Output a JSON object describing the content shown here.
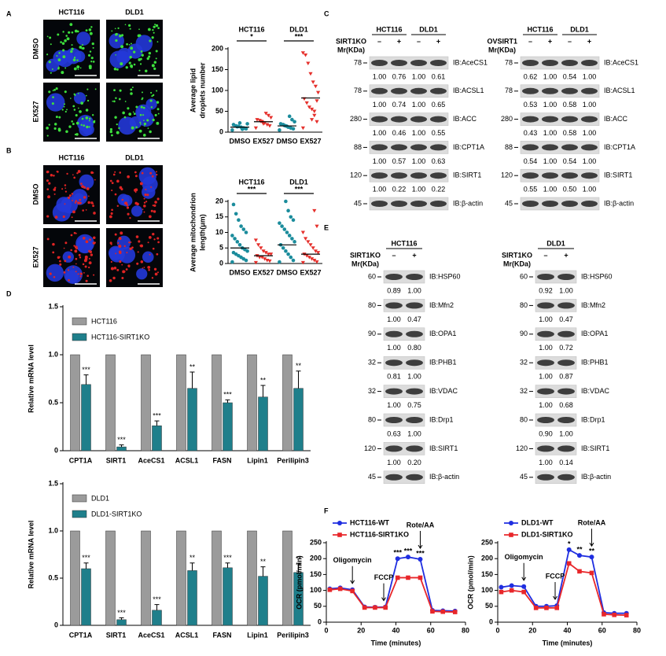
{
  "panel_letters": [
    "A",
    "B",
    "C",
    "D",
    "E",
    "F"
  ],
  "microscopy": [
    {
      "columns": [
        "HCT116",
        "DLD1"
      ],
      "rows": [
        "DMSO",
        "EX527"
      ]
    },
    {
      "columns": [
        "HCT116",
        "DLD1"
      ],
      "rows": [
        "DMSO",
        "EX527"
      ]
    }
  ],
  "blots": [
    {
      "headers": [
        "HCT116",
        "DLD1"
      ],
      "condition": "SIRT1KO",
      "signs": [
        "–",
        "+",
        "–",
        "+"
      ],
      "mw_label": "Mr(KDa)",
      "rows": [
        {
          "mw": 78,
          "ib": "IB:AceCS1",
          "quant": [
            "1.00",
            "0.76",
            "1.00",
            "0.61"
          ]
        },
        {
          "mw": 78,
          "ib": "IB:ACSL1",
          "quant": [
            "1.00",
            "0.74",
            "1.00",
            "0.65"
          ]
        },
        {
          "mw": 280,
          "ib": "IB:ACC",
          "quant": [
            "1.00",
            "0.46",
            "1.00",
            "0.55"
          ]
        },
        {
          "mw": 88,
          "ib": "IB:CPT1A",
          "quant": [
            "1.00",
            "0.57",
            "1.00",
            "0.63"
          ]
        },
        {
          "mw": 120,
          "ib": "IB:SIRT1",
          "quant": [
            "1.00",
            "0.22",
            "1.00",
            "0.22"
          ]
        },
        {
          "mw": 45,
          "ib": "IB:β-actin"
        }
      ]
    },
    {
      "headers": [
        "HCT116",
        "DLD1"
      ],
      "condition": "OVSIRT1",
      "signs": [
        "–",
        "+",
        "–",
        "+"
      ],
      "mw_label": "Mr(KDa)",
      "rows": [
        {
          "mw": 78,
          "ib": "IB:AceCS1",
          "quant": [
            "0.62",
            "1.00",
            "0.54",
            "1.00"
          ]
        },
        {
          "mw": 78,
          "ib": "IB:ACSL1",
          "quant": [
            "0.53",
            "1.00",
            "0.58",
            "1.00"
          ]
        },
        {
          "mw": 280,
          "ib": "IB:ACC",
          "quant": [
            "0.43",
            "1.00",
            "0.58",
            "1.00"
          ]
        },
        {
          "mw": 88,
          "ib": "IB:CPT1A",
          "quant": [
            "0.54",
            "1.00",
            "0.54",
            "1.00"
          ]
        },
        {
          "mw": 120,
          "ib": "IB:SIRT1",
          "quant": [
            "0.55",
            "1.00",
            "0.50",
            "1.00"
          ]
        },
        {
          "mw": 45,
          "ib": "IB:β-actin"
        }
      ]
    },
    {
      "headers": [
        "HCT116"
      ],
      "condition": "SIRT1KO",
      "signs": [
        "–",
        "+"
      ],
      "mw_label": "Mr(KDa)",
      "rows": [
        {
          "mw": 60,
          "ib": "IB:HSP60",
          "quant": [
            "0.89",
            "1.00"
          ]
        },
        {
          "mw": 80,
          "ib": "IB:Mfn2",
          "quant": [
            "1.00",
            "0.47"
          ]
        },
        {
          "mw": 90,
          "ib": "IB:OPA1",
          "quant": [
            "1.00",
            "0.80"
          ]
        },
        {
          "mw": 32,
          "ib": "IB:PHB1",
          "quant": [
            "0.81",
            "1.00"
          ]
        },
        {
          "mw": 32,
          "ib": "IB:VDAC",
          "quant": [
            "1.00",
            "0.75"
          ]
        },
        {
          "mw": 80,
          "ib": "IB:Drp1",
          "quant": [
            "0.63",
            "1.00"
          ]
        },
        {
          "mw": 120,
          "ib": "IB:SIRT1",
          "quant": [
            "1.00",
            "0.20"
          ]
        },
        {
          "mw": 45,
          "ib": "IB:β-actin"
        }
      ]
    },
    {
      "headers": [
        "DLD1"
      ],
      "condition": "SIRT1KO",
      "signs": [
        "–",
        "+"
      ],
      "mw_label": "Mr(KDa)",
      "rows": [
        {
          "mw": 60,
          "ib": "IB:HSP60",
          "quant": [
            "0.92",
            "1.00"
          ]
        },
        {
          "mw": 80,
          "ib": "IB:Mfn2",
          "quant": [
            "1.00",
            "0.47"
          ]
        },
        {
          "mw": 90,
          "ib": "IB:OPA1",
          "quant": [
            "1.00",
            "0.72"
          ]
        },
        {
          "mw": 32,
          "ib": "IB:PHB1",
          "quant": [
            "1.00",
            "0.87"
          ]
        },
        {
          "mw": 32,
          "ib": "IB:VDAC",
          "quant": [
            "1.00",
            "0.68"
          ]
        },
        {
          "mw": 80,
          "ib": "IB:Drp1",
          "quant": [
            "0.90",
            "1.00"
          ]
        },
        {
          "mw": 120,
          "ib": "IB:SIRT1",
          "quant": [
            "1.00",
            "0.14"
          ]
        },
        {
          "mw": 45,
          "ib": "IB:β-actin"
        }
      ]
    }
  ],
  "chart_data": [
    {
      "type": "strip",
      "ylabel": [
        "Average lipid",
        "droplets number"
      ],
      "categories": [
        "DMSO",
        "EX527",
        "DMSO",
        "EX527"
      ],
      "group_labels": [
        "HCT116",
        "DLD1"
      ],
      "significance": [
        "*",
        "***"
      ],
      "ylim": [
        0,
        200
      ],
      "yticks": [
        0,
        50,
        100,
        150,
        200
      ],
      "groups": [
        {
          "color": "#1b8c9c",
          "mean": 12,
          "values": [
            5,
            8,
            10,
            12,
            14,
            15,
            18,
            20,
            9,
            7,
            22,
            13
          ]
        },
        {
          "color": "#e5302c",
          "mean": 25,
          "values": [
            10,
            15,
            18,
            22,
            25,
            28,
            30,
            35,
            40,
            45,
            20,
            26
          ]
        },
        {
          "color": "#1b8c9c",
          "mean": 15,
          "values": [
            5,
            8,
            10,
            12,
            15,
            18,
            20,
            25,
            30,
            38,
            14,
            16
          ]
        },
        {
          "color": "#e5302c",
          "mean": 82,
          "values": [
            10,
            25,
            40,
            55,
            60,
            70,
            80,
            95,
            110,
            120,
            140,
            165,
            185,
            190,
            75,
            50,
            30
          ]
        }
      ]
    },
    {
      "type": "strip",
      "ylabel": [
        "Average mitochondrion",
        "length(μm)"
      ],
      "categories": [
        "DMSO",
        "EX527",
        "DMSO",
        "EX527"
      ],
      "group_labels": [
        "HCT116",
        "DLD1"
      ],
      "significance": [
        "***",
        "***"
      ],
      "ylim": [
        0,
        20
      ],
      "yticks": [
        0,
        5,
        10,
        15,
        20
      ],
      "groups": [
        {
          "color": "#1b8c9c",
          "mean": 5,
          "values": [
            0.5,
            1,
            1.5,
            2,
            2.5,
            3,
            3.5,
            4,
            4.5,
            5,
            6,
            7,
            8,
            9,
            10,
            11,
            12,
            14,
            16,
            19
          ]
        },
        {
          "color": "#e5302c",
          "mean": 2.5,
          "values": [
            0.3,
            0.8,
            1,
            1.5,
            2,
            2,
            2.5,
            3,
            3,
            3.5,
            4,
            5,
            6,
            7.5
          ]
        },
        {
          "color": "#1b8c9c",
          "mean": 6,
          "values": [
            0.5,
            1,
            2,
            3,
            4,
            5,
            6,
            7,
            8,
            9,
            10,
            11,
            12,
            13,
            14,
            15,
            17,
            20
          ]
        },
        {
          "color": "#e5302c",
          "mean": 3,
          "values": [
            0.3,
            0.5,
            1,
            1.5,
            2,
            2.5,
            3,
            3.5,
            4,
            5,
            6,
            7,
            8,
            10,
            12,
            17
          ]
        }
      ]
    },
    {
      "type": "bar",
      "ylabel": "Relative mRNA level",
      "categories": [
        "CPT1A",
        "SIRT1",
        "AceCS1",
        "ACSL1",
        "FASN",
        "Lipin1",
        "Perilipin3"
      ],
      "ylim": [
        0,
        1.5
      ],
      "yticks": [
        0,
        0.5,
        {
          "value": 1,
          "label": "1.0"
        },
        1.5
      ],
      "series": [
        {
          "name": "HCT116",
          "color": "#9b9b9b",
          "values": [
            1,
            1,
            1,
            1,
            1,
            1,
            1
          ]
        },
        {
          "name": "HCT116-SIRT1KO",
          "color": "#1f7f8b",
          "values": [
            0.69,
            0.04,
            0.26,
            0.65,
            0.5,
            0.56,
            0.65
          ],
          "errors": [
            0.1,
            0.02,
            0.05,
            0.17,
            0.03,
            0.12,
            0.18
          ],
          "significance": [
            "***",
            "***",
            "***",
            "**",
            "***",
            "**",
            "**"
          ]
        }
      ]
    },
    {
      "type": "bar",
      "ylabel": "Relative mRNA level",
      "categories": [
        "CPT1A",
        "SIRT1",
        "AceCS1",
        "ACSL1",
        "FASN",
        "Lipin1",
        "Perilipin3"
      ],
      "ylim": [
        0,
        1.5
      ],
      "yticks": [
        0,
        0.5,
        {
          "value": 1,
          "label": "1.0"
        },
        1.5
      ],
      "series": [
        {
          "name": "DLD1",
          "color": "#9b9b9b",
          "values": [
            1,
            1,
            1,
            1,
            1,
            1,
            1
          ]
        },
        {
          "name": "DLD1-SIRT1KO",
          "color": "#1f7f8b",
          "values": [
            0.6,
            0.06,
            0.16,
            0.58,
            0.61,
            0.52,
            0.56
          ],
          "errors": [
            0.06,
            0.02,
            0.06,
            0.08,
            0.05,
            0.1,
            0.09
          ],
          "significance": [
            "***",
            "***",
            "***",
            "**",
            "***",
            "**",
            "**"
          ]
        }
      ]
    },
    {
      "type": "line",
      "xlabel": "Time (minutes)",
      "ylabel": "OCR (pmol/min)",
      "xlim": [
        0,
        80
      ],
      "xticks": [
        0,
        20,
        40,
        60,
        80
      ],
      "ylim": [
        0,
        250
      ],
      "yticks": [
        0,
        50,
        100,
        150,
        200,
        250
      ],
      "x": [
        2,
        8,
        15,
        22,
        28,
        34,
        41,
        47,
        54,
        61,
        67,
        74
      ],
      "significance": [
        null,
        null,
        null,
        null,
        null,
        null,
        "***",
        "***",
        "***",
        null,
        null,
        null
      ],
      "annotations": [
        {
          "text": "Oligomycin",
          "x": 15
        },
        {
          "text": "FCCP",
          "x": 33
        },
        {
          "text": "Rote/AA",
          "x": 54
        }
      ],
      "series": [
        {
          "name": "HCT116-WT",
          "color": "#1f2ee0",
          "marker": "circle",
          "values": [
            105,
            108,
            102,
            48,
            47,
            48,
            200,
            205,
            198,
            37,
            36,
            35
          ]
        },
        {
          "name": "HCT116-SIRT1KO",
          "color": "#e8262a",
          "marker": "square",
          "values": [
            102,
            105,
            98,
            46,
            46,
            46,
            140,
            140,
            140,
            34,
            33,
            32
          ]
        }
      ]
    },
    {
      "type": "line",
      "xlabel": "Time (minutes)",
      "ylabel": "OCR (pmol/min)",
      "xlim": [
        0,
        80
      ],
      "xticks": [
        0,
        20,
        40,
        60,
        80
      ],
      "ylim": [
        0,
        250
      ],
      "yticks": [
        0,
        50,
        100,
        150,
        200,
        250
      ],
      "x": [
        2,
        8,
        15,
        22,
        28,
        34,
        41,
        47,
        54,
        61,
        67,
        74
      ],
      "significance": [
        null,
        null,
        null,
        null,
        null,
        null,
        "*",
        "**",
        "**",
        null,
        null,
        null
      ],
      "annotations": [
        {
          "text": "Oligomycin",
          "x": 15
        },
        {
          "text": "FCCP",
          "x": 33
        },
        {
          "text": "Rote/AA",
          "x": 54
        }
      ],
      "series": [
        {
          "name": "DLD1-WT",
          "color": "#1f2ee0",
          "marker": "circle",
          "values": [
            110,
            115,
            112,
            50,
            50,
            52,
            228,
            210,
            205,
            30,
            28,
            28
          ]
        },
        {
          "name": "DLD1-SIRT1KO",
          "color": "#e8262a",
          "marker": "square",
          "values": [
            95,
            100,
            95,
            45,
            45,
            45,
            185,
            160,
            155,
            25,
            23,
            22
          ]
        }
      ]
    }
  ]
}
